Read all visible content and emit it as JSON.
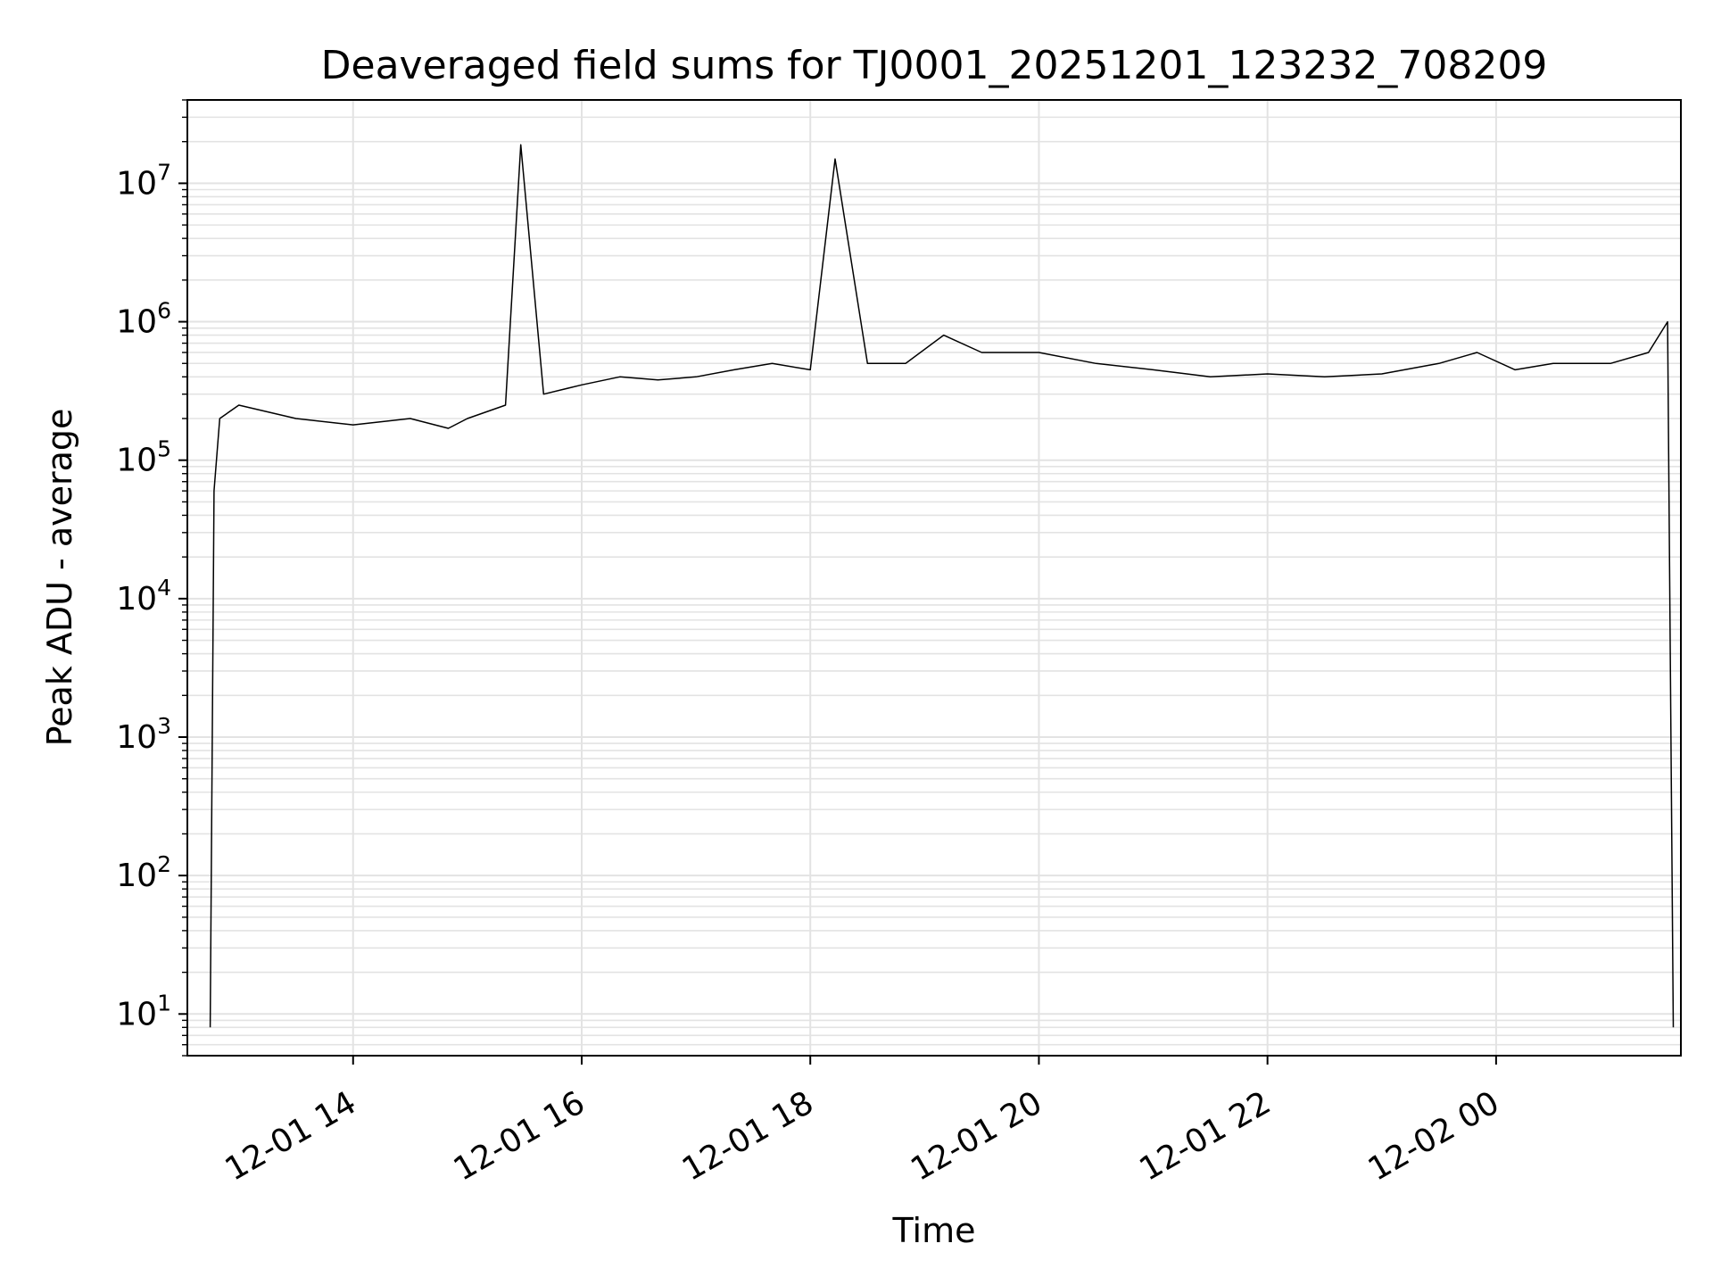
{
  "chart_data": {
    "type": "line",
    "title": "Deaveraged field sums for TJ0001_20251201_123232_708209",
    "xlabel": "Time",
    "ylabel": "Peak ADU - average",
    "yscale": "log",
    "grid": true,
    "line_color": "#000000",
    "x_tick_labels": [
      "12-01 14",
      "12-01 16",
      "12-01 18",
      "12-01 20",
      "12-01 22",
      "12-02 00"
    ],
    "y_tick_exponents": [
      "1",
      "2",
      "3",
      "4",
      "5",
      "6",
      "7"
    ],
    "y_tick_base": "10",
    "xlim": [
      "2025-12-01 12:33",
      "2025-12-02 01:37"
    ],
    "ylim": [
      5,
      40000000
    ],
    "series": [
      {
        "x": [
          "2025-12-01 12:45",
          "2025-12-01 12:47",
          "2025-12-01 12:50",
          "2025-12-01 13:00",
          "2025-12-01 13:30",
          "2025-12-01 14:00",
          "2025-12-01 14:30",
          "2025-12-01 14:50",
          "2025-12-01 15:00",
          "2025-12-01 15:20",
          "2025-12-01 15:28",
          "2025-12-01 15:40",
          "2025-12-01 16:00",
          "2025-12-01 16:20",
          "2025-12-01 16:40",
          "2025-12-01 17:00",
          "2025-12-01 17:20",
          "2025-12-01 17:40",
          "2025-12-01 18:00",
          "2025-12-01 18:13",
          "2025-12-01 18:30",
          "2025-12-01 18:50",
          "2025-12-01 19:10",
          "2025-12-01 19:30",
          "2025-12-01 20:00",
          "2025-12-01 20:30",
          "2025-12-01 21:00",
          "2025-12-01 21:30",
          "2025-12-01 22:00",
          "2025-12-01 22:30",
          "2025-12-01 23:00",
          "2025-12-01 23:30",
          "2025-12-01 23:50",
          "2025-12-02 00:10",
          "2025-12-02 00:30",
          "2025-12-02 01:00",
          "2025-12-02 01:20",
          "2025-12-02 01:30",
          "2025-12-02 01:33"
        ],
        "y": [
          8,
          60000,
          200000,
          250000,
          200000,
          180000,
          200000,
          170000,
          200000,
          250000,
          19000000,
          300000,
          350000,
          400000,
          380000,
          400000,
          450000,
          500000,
          450000,
          15000000,
          500000,
          500000,
          800000,
          600000,
          600000,
          500000,
          450000,
          400000,
          420000,
          400000,
          420000,
          500000,
          600000,
          450000,
          500000,
          500000,
          600000,
          1000000,
          8
        ]
      }
    ]
  }
}
